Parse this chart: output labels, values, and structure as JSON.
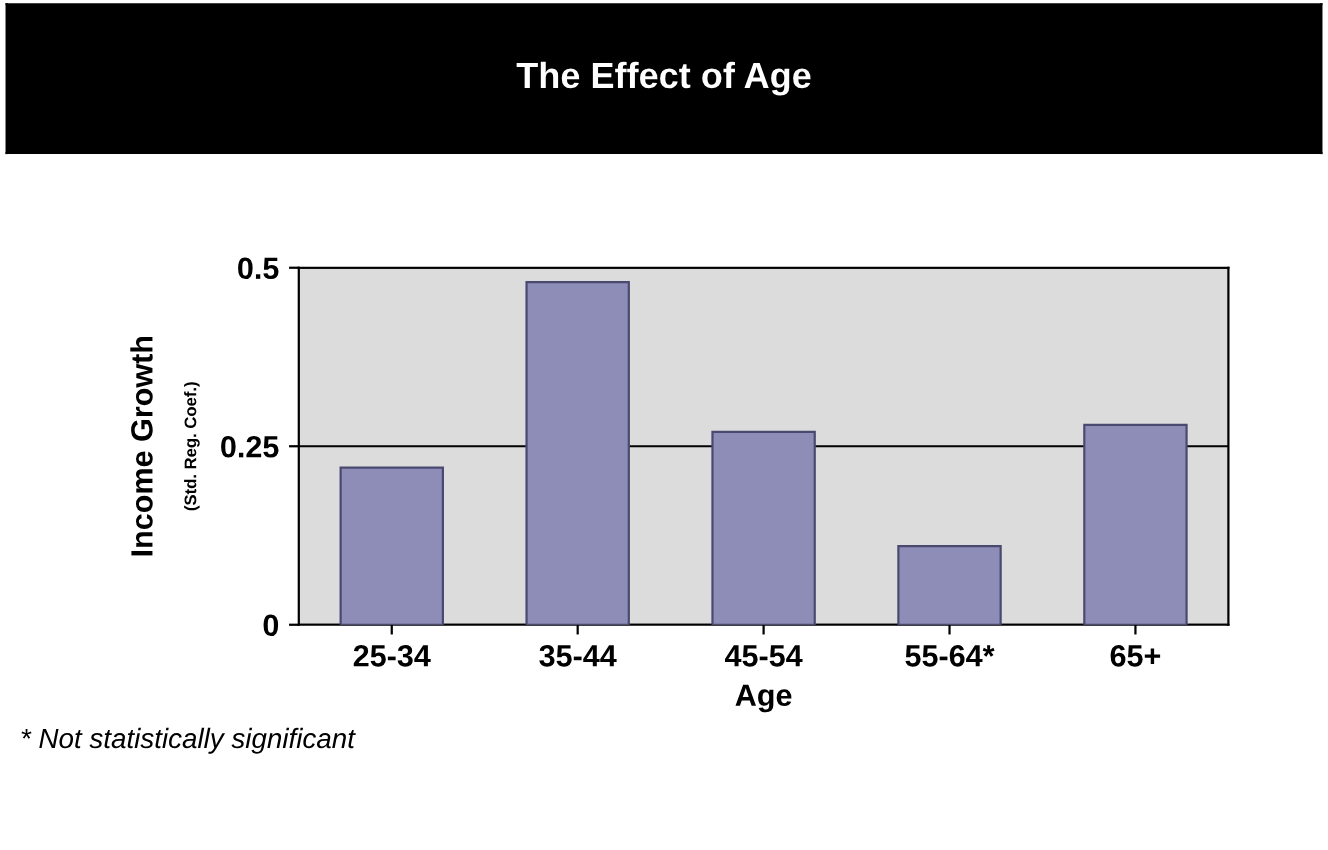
{
  "chart_data": {
    "type": "bar",
    "title": "The Effect of Age",
    "xlabel": "Age",
    "ylabel": "Income Growth",
    "categories": [
      "25-34",
      "35-44",
      "45-54",
      "55-64*",
      "65+"
    ],
    "values": [
      0.22,
      0.48,
      0.27,
      0.11,
      0.28
    ],
    "color": "#8d8db8",
    "ylim": [
      0,
      0.5
    ],
    "yticks": [
      0,
      0.25,
      0.5
    ],
    "grid": "y",
    "annotations": [
      "(Std. Reg. Coef.)",
      "* Not statistically significant"
    ]
  }
}
